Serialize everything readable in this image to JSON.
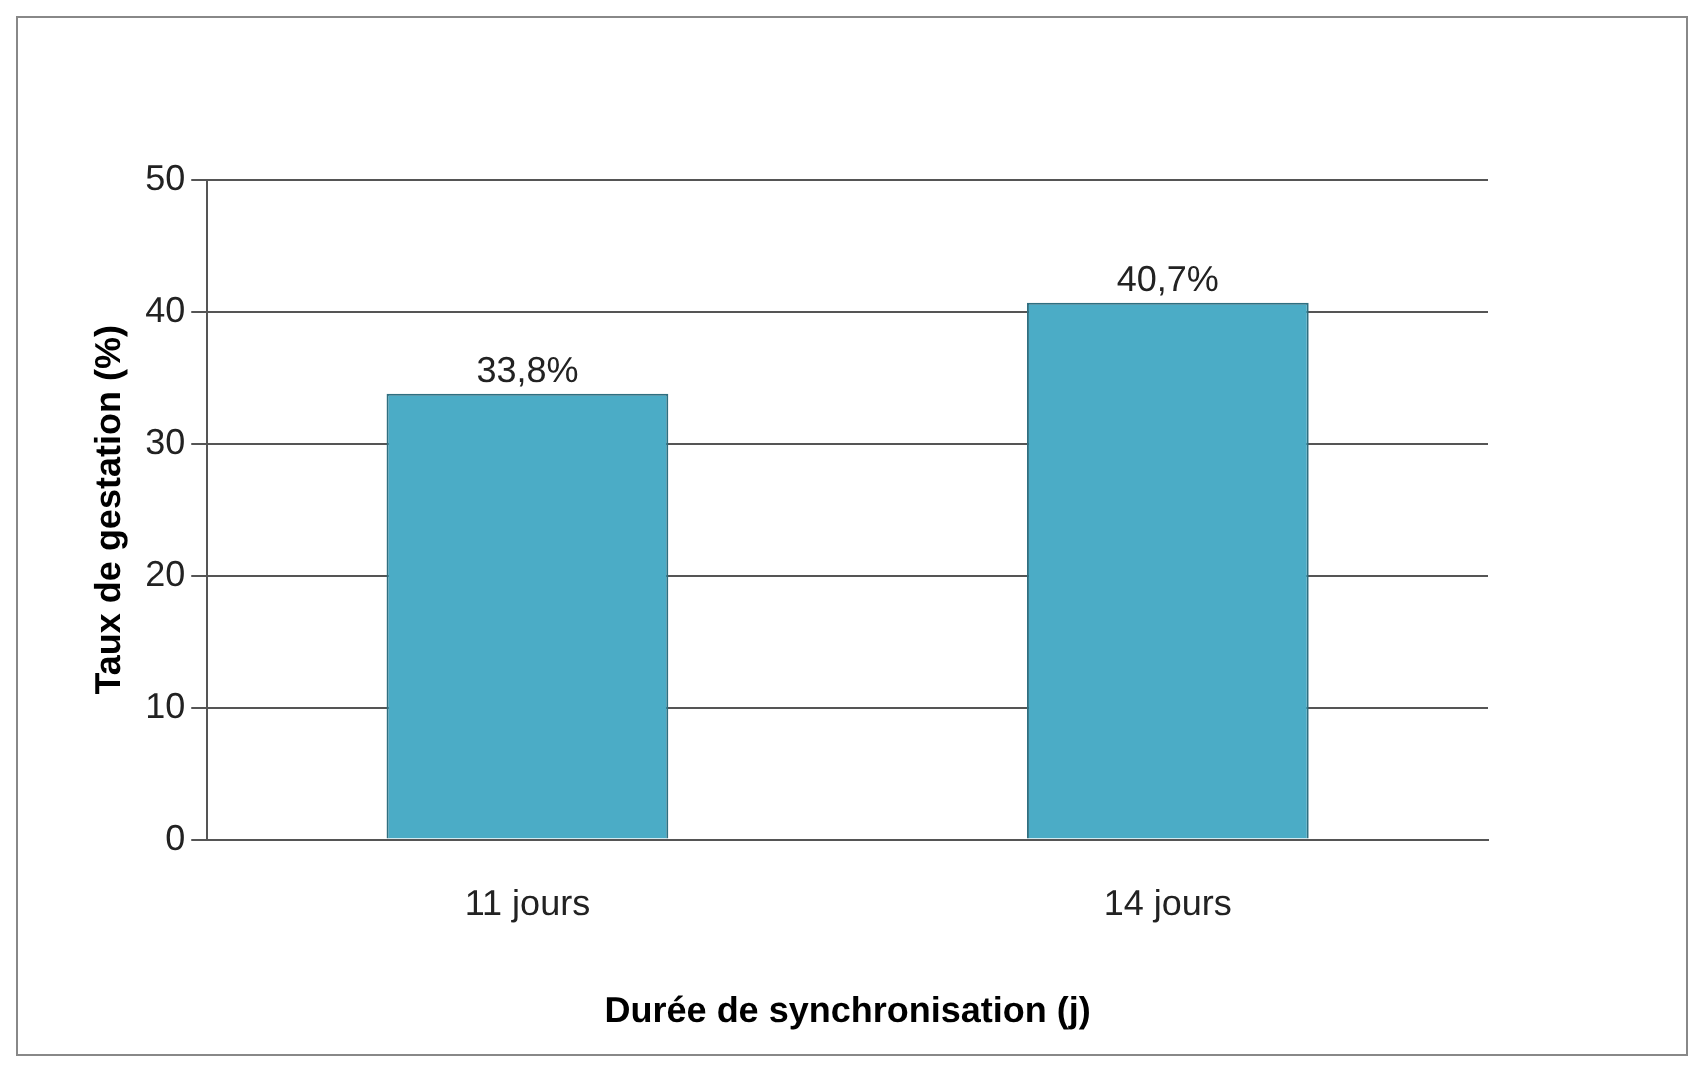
{
  "chart_data": {
    "type": "bar",
    "xlabel": "Durée de synchronisation (j)",
    "ylabel": "Taux de gestation (%)",
    "categories": [
      "11 jours",
      "14 jours"
    ],
    "values": [
      33.8,
      40.7
    ],
    "value_labels": [
      "33,8%",
      "40,7%"
    ],
    "color": "#4bacc6",
    "ylim": [
      0,
      50
    ],
    "yticks": [
      0,
      10,
      20,
      30,
      40,
      50
    ],
    "grid": "y",
    "legend": false
  }
}
